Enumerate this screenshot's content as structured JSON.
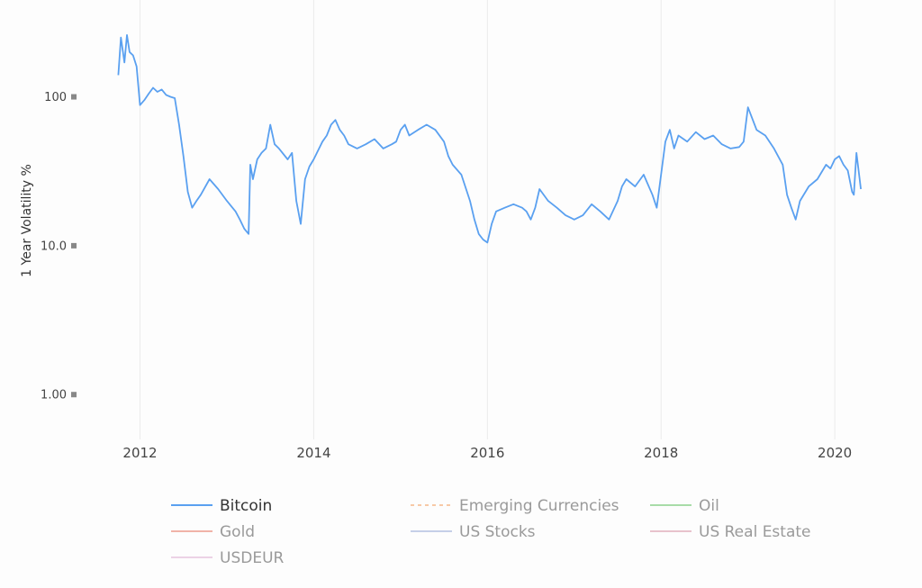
{
  "chart_data": {
    "type": "line",
    "title": "",
    "xlabel": "",
    "ylabel": "1 Year Volatility %",
    "y_scale": "log",
    "ylim": [
      0.5,
      400
    ],
    "xlim": [
      2011.3,
      2020.6
    ],
    "x_ticks": [
      2012,
      2014,
      2016,
      2018,
      2020
    ],
    "x_tick_labels": [
      "2012",
      "2014",
      "2016",
      "2018",
      "2020"
    ],
    "y_ticks": [
      1,
      10,
      100
    ],
    "y_tick_labels": [
      "1.00",
      "10.0",
      "100"
    ],
    "grid": {
      "vertical": true,
      "horizontal": false
    },
    "legend_position": "bottom",
    "series": [
      {
        "name": "Bitcoin",
        "color": "#5aa0f0",
        "active": true,
        "x": [
          2011.75,
          2011.78,
          2011.82,
          2011.85,
          2011.88,
          2011.92,
          2011.96,
          2012.0,
          2012.05,
          2012.1,
          2012.15,
          2012.2,
          2012.25,
          2012.3,
          2012.35,
          2012.4,
          2012.45,
          2012.5,
          2012.55,
          2012.6,
          2012.65,
          2012.7,
          2012.8,
          2012.9,
          2013.0,
          2013.1,
          2013.15,
          2013.2,
          2013.25,
          2013.27,
          2013.3,
          2013.35,
          2013.4,
          2013.45,
          2013.5,
          2013.55,
          2013.6,
          2013.7,
          2013.75,
          2013.8,
          2013.85,
          2013.9,
          2013.95,
          2014.0,
          2014.1,
          2014.15,
          2014.2,
          2014.25,
          2014.3,
          2014.35,
          2014.4,
          2014.5,
          2014.6,
          2014.7,
          2014.8,
          2014.9,
          2014.95,
          2015.0,
          2015.05,
          2015.1,
          2015.2,
          2015.3,
          2015.4,
          2015.5,
          2015.55,
          2015.6,
          2015.7,
          2015.8,
          2015.85,
          2015.9,
          2015.95,
          2016.0,
          2016.05,
          2016.1,
          2016.2,
          2016.3,
          2016.4,
          2016.45,
          2016.5,
          2016.55,
          2016.6,
          2016.7,
          2016.8,
          2016.9,
          2017.0,
          2017.1,
          2017.2,
          2017.3,
          2017.4,
          2017.5,
          2017.55,
          2017.6,
          2017.7,
          2017.8,
          2017.9,
          2017.95,
          2018.0,
          2018.05,
          2018.1,
          2018.15,
          2018.2,
          2018.3,
          2018.4,
          2018.5,
          2018.6,
          2018.7,
          2018.8,
          2018.9,
          2018.95,
          2019.0,
          2019.1,
          2019.2,
          2019.3,
          2019.4,
          2019.45,
          2019.5,
          2019.55,
          2019.6,
          2019.7,
          2019.8,
          2019.9,
          2019.95,
          2020.0,
          2020.05,
          2020.1,
          2020.15,
          2020.2,
          2020.22,
          2020.25,
          2020.3
        ],
        "y": [
          140,
          250,
          170,
          260,
          200,
          190,
          160,
          88,
          95,
          105,
          115,
          108,
          112,
          103,
          100,
          98,
          65,
          40,
          23,
          18,
          20,
          22,
          28,
          24,
          20,
          17,
          15,
          13,
          12,
          35,
          28,
          38,
          42,
          45,
          65,
          48,
          45,
          38,
          42,
          20,
          14,
          28,
          34,
          38,
          50,
          55,
          65,
          70,
          60,
          55,
          48,
          45,
          48,
          52,
          45,
          48,
          50,
          60,
          65,
          55,
          60,
          65,
          60,
          50,
          40,
          35,
          30,
          20,
          15,
          12,
          11,
          10.5,
          14,
          17,
          18,
          19,
          18,
          17,
          15,
          18,
          24,
          20,
          18,
          16,
          15,
          16,
          19,
          17,
          15,
          20,
          25,
          28,
          25,
          30,
          22,
          18,
          30,
          50,
          60,
          45,
          55,
          50,
          58,
          52,
          55,
          48,
          45,
          46,
          50,
          85,
          60,
          55,
          45,
          35,
          22,
          18,
          15,
          20,
          25,
          28,
          35,
          33,
          38,
          40,
          35,
          32,
          23,
          22,
          42,
          24
        ]
      }
    ],
    "legend": [
      {
        "label": "Bitcoin",
        "color": "#5aa0f0",
        "active": true,
        "dashed": false
      },
      {
        "label": "Emerging Currencies",
        "color": "#f7c9a6",
        "active": false,
        "dashed": true
      },
      {
        "label": "Oil",
        "color": "#a8dca8",
        "active": false,
        "dashed": false
      },
      {
        "label": "Gold",
        "color": "#f0b3a8",
        "active": false,
        "dashed": false
      },
      {
        "label": "US Stocks",
        "color": "#c5cfe8",
        "active": false,
        "dashed": false
      },
      {
        "label": "US Real Estate",
        "color": "#e8c2cc",
        "active": false,
        "dashed": false
      },
      {
        "label": "USDEUR",
        "color": "#ecd2e6",
        "active": false,
        "dashed": false
      }
    ]
  }
}
